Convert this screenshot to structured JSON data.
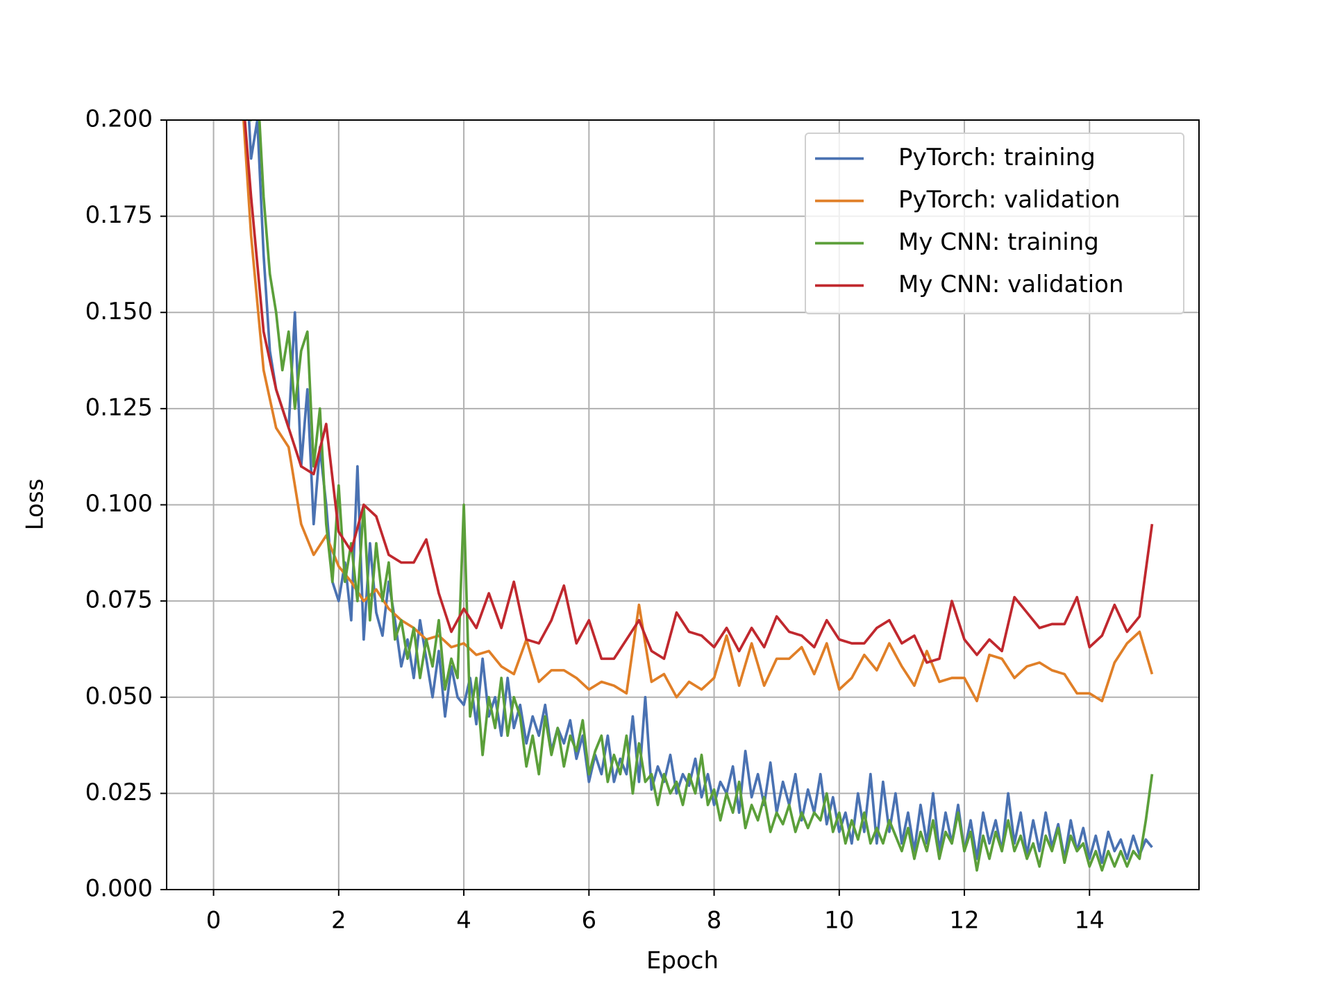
{
  "chart_data": {
    "type": "line",
    "xlabel": "Epoch",
    "ylabel": "Loss",
    "xlim": [
      -0.75,
      15.75
    ],
    "xticks": [
      0,
      2,
      4,
      6,
      8,
      10,
      12,
      14
    ],
    "ylim": [
      0,
      0.2
    ],
    "yticks": [
      {
        "value": 0,
        "label": "0.000"
      },
      0.025,
      {
        "value": 0.05,
        "label": "0.050"
      },
      0.075,
      {
        "value": 0.1,
        "label": "0.100"
      },
      0.125,
      {
        "value": 0.15,
        "label": "0.150"
      },
      0.175,
      {
        "value": 0.2,
        "label": "0.200"
      }
    ],
    "grid": true,
    "legend": "upper right",
    "series": [
      {
        "name": "PyTorch: training",
        "color": "#4a72b2",
        "x": [
          0.5,
          0.6,
          0.7,
          0.8,
          0.9,
          1.0,
          1.1,
          1.2,
          1.3,
          1.4,
          1.5,
          1.6,
          1.7,
          1.8,
          1.9,
          2.0,
          2.1,
          2.2,
          2.3,
          2.4,
          2.5,
          2.6,
          2.7,
          2.8,
          2.9,
          3.0,
          3.1,
          3.2,
          3.3,
          3.4,
          3.5,
          3.6,
          3.7,
          3.8,
          3.9,
          4.0,
          4.1,
          4.2,
          4.3,
          4.4,
          4.5,
          4.6,
          4.7,
          4.8,
          4.9,
          5.0,
          5.1,
          5.2,
          5.3,
          5.4,
          5.5,
          5.6,
          5.7,
          5.8,
          5.9,
          6.0,
          6.1,
          6.2,
          6.3,
          6.4,
          6.5,
          6.6,
          6.7,
          6.8,
          6.9,
          7.0,
          7.1,
          7.2,
          7.3,
          7.4,
          7.5,
          7.6,
          7.7,
          7.8,
          7.9,
          8.0,
          8.1,
          8.2,
          8.3,
          8.4,
          8.5,
          8.6,
          8.7,
          8.8,
          8.9,
          9.0,
          9.1,
          9.2,
          9.3,
          9.4,
          9.5,
          9.6,
          9.7,
          9.8,
          9.9,
          10.0,
          10.1,
          10.2,
          10.3,
          10.4,
          10.5,
          10.6,
          10.7,
          10.8,
          10.9,
          11.0,
          11.1,
          11.2,
          11.3,
          11.4,
          11.5,
          11.6,
          11.7,
          11.8,
          11.9,
          12.0,
          12.1,
          12.2,
          12.3,
          12.4,
          12.5,
          12.6,
          12.7,
          12.8,
          12.9,
          13.0,
          13.1,
          13.2,
          13.3,
          13.4,
          13.5,
          13.6,
          13.7,
          13.8,
          13.9,
          14.0,
          14.1,
          14.2,
          14.3,
          14.4,
          14.5,
          14.6,
          14.7,
          14.8,
          14.9,
          15.0
        ],
        "values": [
          0.22,
          0.19,
          0.2,
          0.165,
          0.14,
          0.13,
          0.125,
          0.12,
          0.15,
          0.11,
          0.13,
          0.095,
          0.115,
          0.1,
          0.08,
          0.075,
          0.085,
          0.07,
          0.11,
          0.065,
          0.09,
          0.072,
          0.066,
          0.08,
          0.07,
          0.058,
          0.065,
          0.055,
          0.07,
          0.06,
          0.05,
          0.062,
          0.045,
          0.058,
          0.05,
          0.048,
          0.055,
          0.043,
          0.06,
          0.045,
          0.05,
          0.04,
          0.055,
          0.042,
          0.048,
          0.038,
          0.045,
          0.04,
          0.048,
          0.036,
          0.042,
          0.038,
          0.044,
          0.034,
          0.04,
          0.028,
          0.035,
          0.03,
          0.04,
          0.028,
          0.034,
          0.03,
          0.045,
          0.028,
          0.05,
          0.026,
          0.032,
          0.028,
          0.035,
          0.025,
          0.03,
          0.027,
          0.034,
          0.024,
          0.03,
          0.022,
          0.028,
          0.025,
          0.032,
          0.02,
          0.036,
          0.024,
          0.03,
          0.022,
          0.033,
          0.02,
          0.028,
          0.022,
          0.03,
          0.018,
          0.026,
          0.02,
          0.03,
          0.017,
          0.024,
          0.015,
          0.02,
          0.012,
          0.025,
          0.015,
          0.03,
          0.012,
          0.028,
          0.015,
          0.025,
          0.012,
          0.02,
          0.01,
          0.022,
          0.012,
          0.025,
          0.01,
          0.02,
          0.012,
          0.022,
          0.01,
          0.018,
          0.008,
          0.02,
          0.012,
          0.018,
          0.01,
          0.025,
          0.012,
          0.02,
          0.009,
          0.018,
          0.01,
          0.02,
          0.011,
          0.017,
          0.008,
          0.018,
          0.01,
          0.016,
          0.008,
          0.014,
          0.007,
          0.015,
          0.01,
          0.013,
          0.008,
          0.014,
          0.009,
          0.013,
          0.011
        ]
      },
      {
        "name": "PyTorch: validation",
        "color": "#e07f27",
        "x": [
          0.4,
          0.6,
          0.8,
          1.0,
          1.2,
          1.4,
          1.6,
          1.8,
          2.0,
          2.2,
          2.4,
          2.6,
          2.8,
          3.0,
          3.2,
          3.4,
          3.6,
          3.8,
          4.0,
          4.2,
          4.4,
          4.6,
          4.8,
          5.0,
          5.2,
          5.4,
          5.6,
          5.8,
          6.0,
          6.2,
          6.4,
          6.6,
          6.8,
          7.0,
          7.2,
          7.4,
          7.6,
          7.8,
          8.0,
          8.2,
          8.4,
          8.6,
          8.8,
          9.0,
          9.2,
          9.4,
          9.6,
          9.8,
          10.0,
          10.2,
          10.4,
          10.6,
          10.8,
          11.0,
          11.2,
          11.4,
          11.6,
          11.8,
          12.0,
          12.2,
          12.4,
          12.6,
          12.8,
          13.0,
          13.2,
          13.4,
          13.6,
          13.8,
          14.0,
          14.2,
          14.4,
          14.6,
          14.8,
          15.0
        ],
        "values": [
          0.22,
          0.17,
          0.135,
          0.12,
          0.115,
          0.095,
          0.087,
          0.092,
          0.084,
          0.08,
          0.075,
          0.078,
          0.073,
          0.07,
          0.068,
          0.065,
          0.066,
          0.063,
          0.064,
          0.061,
          0.062,
          0.058,
          0.056,
          0.065,
          0.054,
          0.057,
          0.057,
          0.055,
          0.052,
          0.054,
          0.053,
          0.051,
          0.074,
          0.054,
          0.056,
          0.05,
          0.054,
          0.052,
          0.055,
          0.066,
          0.053,
          0.064,
          0.053,
          0.06,
          0.06,
          0.063,
          0.056,
          0.064,
          0.052,
          0.055,
          0.061,
          0.057,
          0.064,
          0.058,
          0.053,
          0.062,
          0.054,
          0.055,
          0.055,
          0.049,
          0.061,
          0.06,
          0.055,
          0.058,
          0.059,
          0.057,
          0.056,
          0.051,
          0.051,
          0.049,
          0.059,
          0.064,
          0.067,
          0.056
        ]
      },
      {
        "name": "My CNN: training",
        "color": "#5b9f3a",
        "x": [
          0.5,
          0.6,
          0.7,
          0.8,
          0.9,
          1.0,
          1.1,
          1.2,
          1.3,
          1.4,
          1.5,
          1.6,
          1.7,
          1.8,
          1.9,
          2.0,
          2.1,
          2.2,
          2.3,
          2.4,
          2.5,
          2.6,
          2.7,
          2.8,
          2.9,
          3.0,
          3.1,
          3.2,
          3.3,
          3.4,
          3.5,
          3.6,
          3.7,
          3.8,
          3.9,
          4.0,
          4.1,
          4.2,
          4.3,
          4.4,
          4.5,
          4.6,
          4.7,
          4.8,
          4.9,
          5.0,
          5.1,
          5.2,
          5.3,
          5.4,
          5.5,
          5.6,
          5.7,
          5.8,
          5.9,
          6.0,
          6.1,
          6.2,
          6.3,
          6.4,
          6.5,
          6.6,
          6.7,
          6.8,
          6.9,
          7.0,
          7.1,
          7.2,
          7.3,
          7.4,
          7.5,
          7.6,
          7.7,
          7.8,
          7.9,
          8.0,
          8.1,
          8.2,
          8.3,
          8.4,
          8.5,
          8.6,
          8.7,
          8.8,
          8.9,
          9.0,
          9.1,
          9.2,
          9.3,
          9.4,
          9.5,
          9.6,
          9.7,
          9.8,
          9.9,
          10.0,
          10.1,
          10.2,
          10.3,
          10.4,
          10.5,
          10.6,
          10.7,
          10.8,
          10.9,
          11.0,
          11.1,
          11.2,
          11.3,
          11.4,
          11.5,
          11.6,
          11.7,
          11.8,
          11.9,
          12.0,
          12.1,
          12.2,
          12.3,
          12.4,
          12.5,
          12.6,
          12.7,
          12.8,
          12.9,
          13.0,
          13.1,
          13.2,
          13.3,
          13.4,
          13.5,
          13.6,
          13.7,
          13.8,
          13.9,
          14.0,
          14.1,
          14.2,
          14.3,
          14.4,
          14.5,
          14.6,
          14.7,
          14.8,
          14.9,
          15.0
        ],
        "values": [
          0.23,
          0.2,
          0.21,
          0.18,
          0.16,
          0.15,
          0.135,
          0.145,
          0.125,
          0.14,
          0.145,
          0.11,
          0.125,
          0.095,
          0.08,
          0.105,
          0.08,
          0.09,
          0.075,
          0.1,
          0.07,
          0.09,
          0.075,
          0.085,
          0.065,
          0.07,
          0.06,
          0.068,
          0.055,
          0.065,
          0.058,
          0.07,
          0.052,
          0.06,
          0.055,
          0.1,
          0.045,
          0.055,
          0.035,
          0.05,
          0.042,
          0.055,
          0.04,
          0.05,
          0.045,
          0.032,
          0.04,
          0.03,
          0.045,
          0.035,
          0.042,
          0.032,
          0.04,
          0.036,
          0.044,
          0.03,
          0.036,
          0.04,
          0.028,
          0.035,
          0.03,
          0.04,
          0.025,
          0.038,
          0.028,
          0.03,
          0.022,
          0.03,
          0.025,
          0.028,
          0.022,
          0.03,
          0.025,
          0.035,
          0.022,
          0.026,
          0.018,
          0.025,
          0.02,
          0.028,
          0.016,
          0.022,
          0.018,
          0.024,
          0.015,
          0.02,
          0.017,
          0.022,
          0.015,
          0.02,
          0.016,
          0.02,
          0.018,
          0.025,
          0.015,
          0.02,
          0.012,
          0.018,
          0.013,
          0.02,
          0.012,
          0.016,
          0.012,
          0.018,
          0.014,
          0.01,
          0.016,
          0.008,
          0.015,
          0.01,
          0.018,
          0.008,
          0.015,
          0.012,
          0.02,
          0.01,
          0.015,
          0.005,
          0.014,
          0.008,
          0.015,
          0.01,
          0.018,
          0.01,
          0.014,
          0.008,
          0.012,
          0.006,
          0.014,
          0.01,
          0.016,
          0.007,
          0.014,
          0.01,
          0.012,
          0.006,
          0.01,
          0.005,
          0.01,
          0.006,
          0.01,
          0.006,
          0.01,
          0.008,
          0.018,
          0.03
        ]
      },
      {
        "name": "My CNN: validation",
        "color": "#c0282e",
        "x": [
          0.4,
          0.6,
          0.8,
          1.0,
          1.2,
          1.4,
          1.6,
          1.8,
          2.0,
          2.2,
          2.4,
          2.6,
          2.8,
          3.0,
          3.2,
          3.4,
          3.6,
          3.8,
          4.0,
          4.2,
          4.4,
          4.6,
          4.8,
          5.0,
          5.2,
          5.4,
          5.6,
          5.8,
          6.0,
          6.2,
          6.4,
          6.6,
          6.8,
          7.0,
          7.2,
          7.4,
          7.6,
          7.8,
          8.0,
          8.2,
          8.4,
          8.6,
          8.8,
          9.0,
          9.2,
          9.4,
          9.6,
          9.8,
          10.0,
          10.2,
          10.4,
          10.6,
          10.8,
          11.0,
          11.2,
          11.4,
          11.6,
          11.8,
          12.0,
          12.2,
          12.4,
          12.6,
          12.8,
          13.0,
          13.2,
          13.4,
          13.6,
          13.8,
          14.0,
          14.2,
          14.4,
          14.6,
          14.8,
          15.0
        ],
        "values": [
          0.22,
          0.18,
          0.145,
          0.13,
          0.12,
          0.11,
          0.108,
          0.121,
          0.093,
          0.088,
          0.1,
          0.097,
          0.087,
          0.085,
          0.085,
          0.091,
          0.077,
          0.067,
          0.073,
          0.068,
          0.077,
          0.068,
          0.08,
          0.065,
          0.064,
          0.07,
          0.079,
          0.064,
          0.07,
          0.06,
          0.06,
          0.065,
          0.07,
          0.062,
          0.06,
          0.072,
          0.067,
          0.066,
          0.063,
          0.068,
          0.062,
          0.068,
          0.063,
          0.071,
          0.067,
          0.066,
          0.063,
          0.07,
          0.065,
          0.064,
          0.064,
          0.068,
          0.07,
          0.064,
          0.066,
          0.059,
          0.06,
          0.075,
          0.065,
          0.061,
          0.065,
          0.062,
          0.076,
          0.072,
          0.068,
          0.069,
          0.069,
          0.076,
          0.063,
          0.066,
          0.074,
          0.067,
          0.071,
          0.095
        ]
      }
    ]
  }
}
